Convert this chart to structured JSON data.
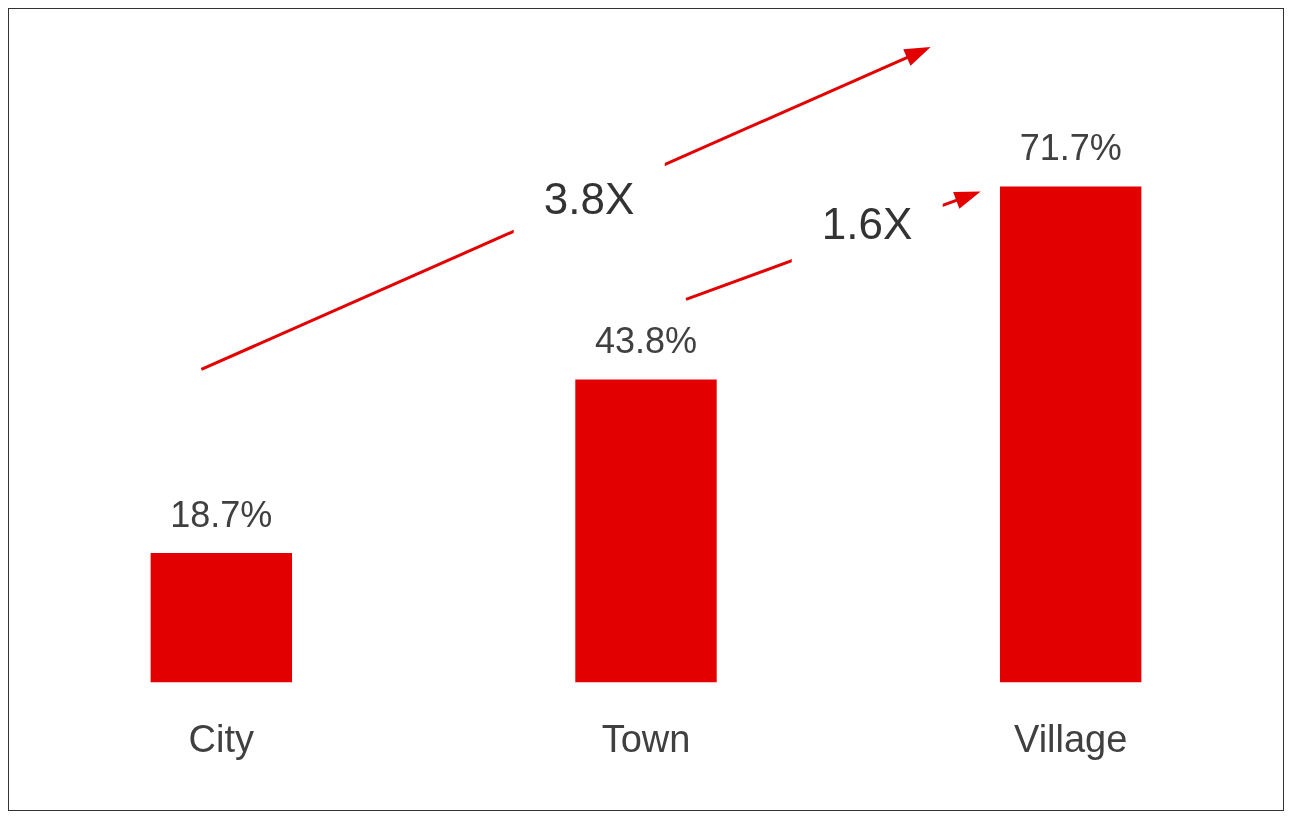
{
  "chart_data": {
    "type": "bar",
    "categories": [
      "City",
      "Town",
      "Village"
    ],
    "values": [
      18.7,
      43.8,
      71.7
    ],
    "value_labels": [
      "18.7%",
      "43.8%",
      "71.7%"
    ],
    "color": "#e30000",
    "annotations": [
      "3.8X",
      "1.6X"
    ],
    "legend": false,
    "grid": false
  }
}
